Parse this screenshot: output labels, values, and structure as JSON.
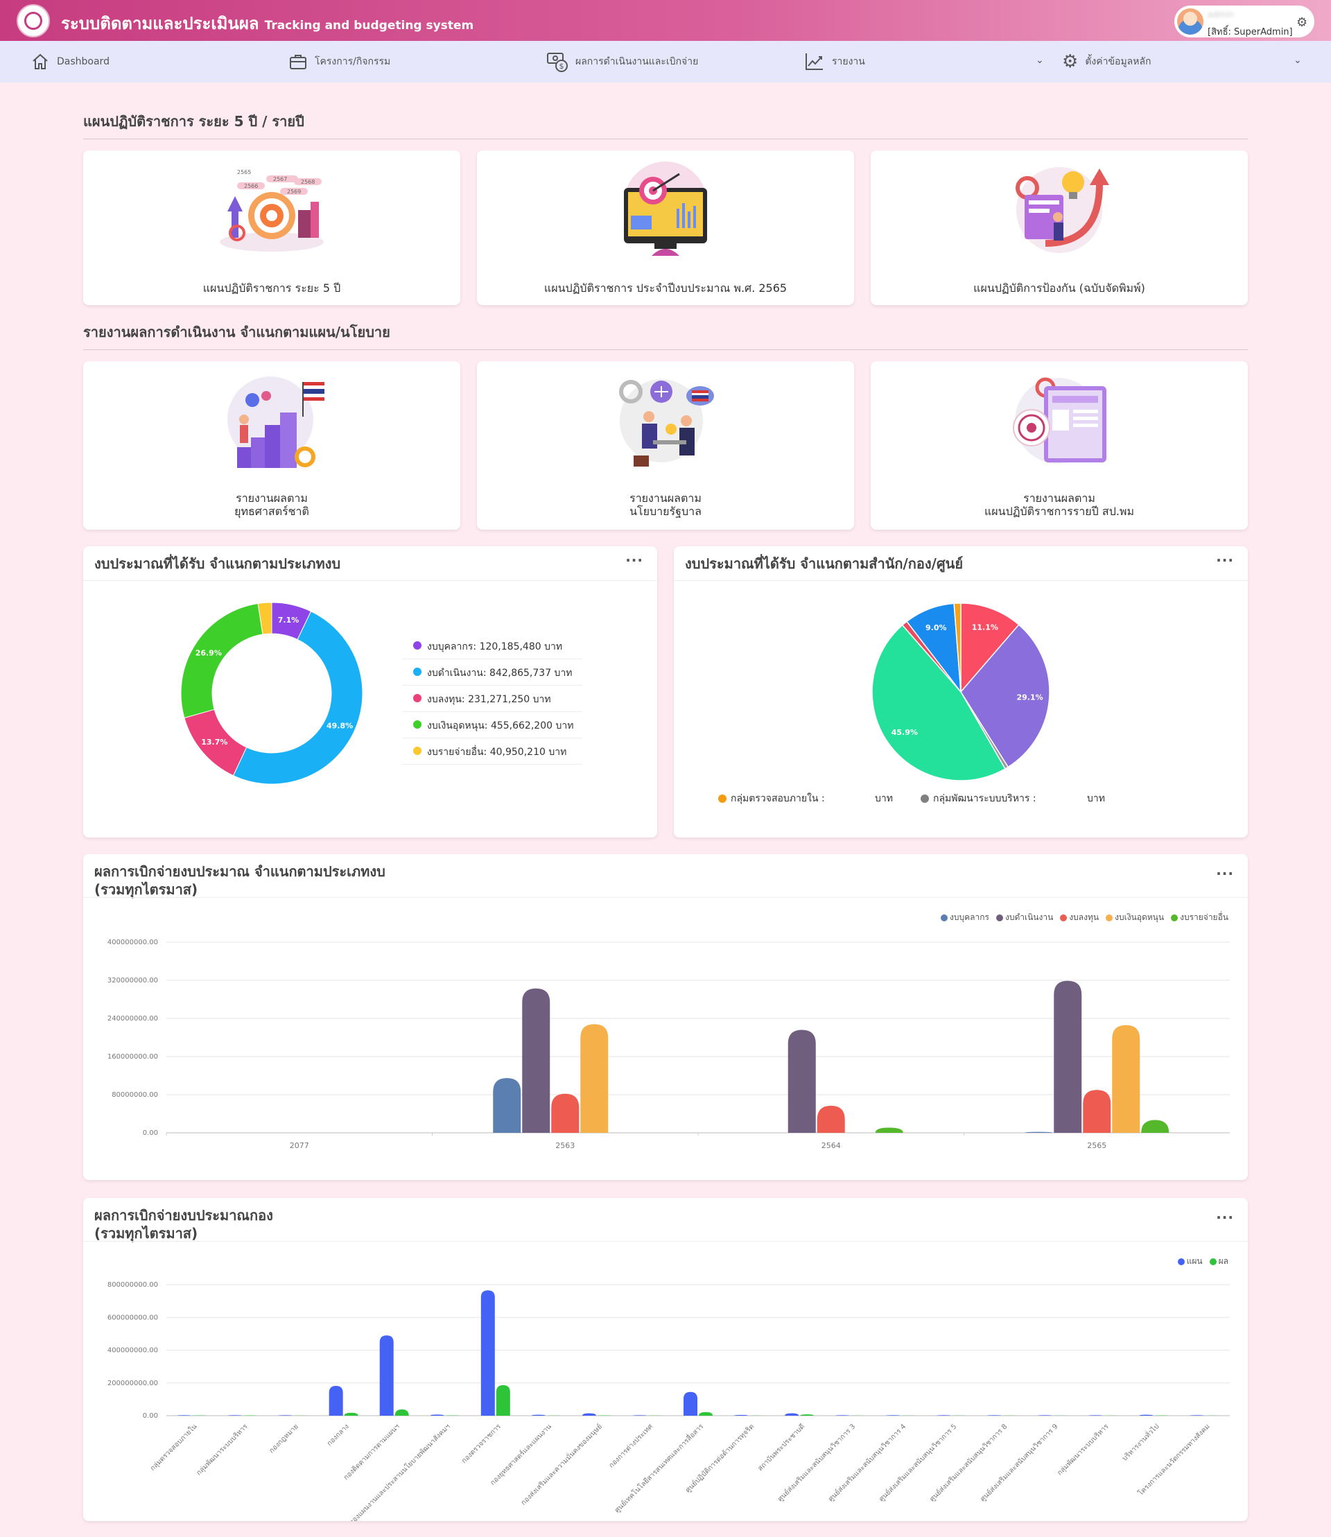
{
  "header": {
    "title_th": "ระบบติดตามและประเมินผล",
    "title_en": "Tracking and budgeting system",
    "user": {
      "name": "admin",
      "role": "[สิทธิ์: SuperAdmin]"
    }
  },
  "nav": {
    "items": [
      {
        "label": "Dashboard",
        "icon": "home-icon"
      },
      {
        "label": "โครงการ/กิจกรรม",
        "icon": "briefcase-icon"
      },
      {
        "label": "ผลการดำเนินงานและเบิกจ่าย",
        "icon": "money-icon"
      },
      {
        "label": "รายงาน",
        "icon": "chart-line-icon"
      },
      {
        "label": "ตั้งค่าข้อมูลหลัก",
        "icon": "gear-icon"
      }
    ]
  },
  "sections": {
    "plans_title": "แผนปฏิบัติราชการ ระยะ 5 ปี / รายปี",
    "reports_title": "รายงานผลการดำเนินงาน จำแนกตามแผน/นโยบาย"
  },
  "plan_tiles": [
    {
      "label": "แผนปฏิบัติราชการ ระยะ 5 ปี",
      "years": [
        "2565",
        "2566",
        "2567",
        "2568",
        "2569"
      ]
    },
    {
      "label": "แผนปฏิบัติราชการ ประจำปีงบประมาณ พ.ศ. 2565"
    },
    {
      "label": "แผนปฏิบัติการป้องกัน (ฉบับจัดพิมพ์)"
    }
  ],
  "report_tiles": [
    {
      "line1": "รายงานผลตาม",
      "line2": "ยุทธศาสตร์ชาติ"
    },
    {
      "line1": "รายงานผลตาม",
      "line2": "นโยบายรัฐบาล"
    },
    {
      "line1": "รายงานผลตาม",
      "line2": "แผนปฏิบัติราชการรายปี สป.พม"
    }
  ],
  "panels": {
    "donut_title": "งบประมาณที่ได้รับ จำแนกตามประเภทงบ",
    "pie_title": "งบประมาณที่ได้รับ จำแนกตามสำนัก/กอง/ศูนย์",
    "bar1_title_1": "ผลการเบิกจ่ายงบประมาณ จำแนกตามประเภทงบ",
    "bar1_title_2": "(รวมทุกไตรมาส)",
    "bar2_title_1": "ผลการเบิกจ่ายงบประมาณกอง",
    "bar2_title_2": "(รวมทุกไตรมาส)",
    "menu_dots": "···"
  },
  "chart_data": [
    {
      "type": "pie",
      "title": "งบประมาณที่ได้รับ จำแนกตามประเภทงบ",
      "donut": true,
      "slices": [
        {
          "label": "งบบุคลากร: 120,185,480 บาท",
          "value": 120185480,
          "pct_label": "7.1%",
          "color": "#8e44e6"
        },
        {
          "label": "งบดำเนินงาน: 842,865,737 บาท",
          "value": 842865737,
          "pct_label": "49.8%",
          "color": "#1ab0f5"
        },
        {
          "label": "งบลงทุน: 231,271,250 บาท",
          "value": 231271250,
          "pct_label": "13.7%",
          "color": "#ec407a"
        },
        {
          "label": "งบเงินอุดหนุน: 455,662,200 บาท",
          "value": 455662200,
          "pct_label": "26.9%",
          "color": "#3fcf2a"
        },
        {
          "label": "งบรายจ่ายอื่น: 40,950,210 บาท",
          "value": 40950210,
          "pct_label": "",
          "color": "#fdc72f"
        }
      ],
      "legend_position": "right"
    },
    {
      "type": "pie",
      "title": "งบประมาณที่ได้รับ จำแนกตามสำนัก/กอง/ศูนย์",
      "slices": [
        {
          "value": 11.1,
          "pct_label": "11.1%",
          "color": "#fa4d64"
        },
        {
          "value": 29.1,
          "pct_label": "29.1%",
          "color": "#8a6fdc"
        },
        {
          "value": 0.6,
          "pct_label": "",
          "color": "#9a9a9a"
        },
        {
          "value": 45.9,
          "pct_label": "45.9%",
          "color": "#23e09a"
        },
        {
          "value": 1.0,
          "pct_label": "",
          "color": "#e84a5f"
        },
        {
          "value": 9.0,
          "pct_label": "9.0%",
          "color": "#1a8cf0"
        },
        {
          "value": 1.2,
          "pct_label": "",
          "color": "#f7a21b"
        }
      ],
      "legend": [
        {
          "label": "กลุ่มตรวจสอบภายใน :",
          "unit": "บาท",
          "color": "#f39c12"
        },
        {
          "label": "กลุ่มพัฒนาระบบบริหาร :",
          "unit": "บาท",
          "color": "#808080"
        }
      ],
      "legend_position": "bottom"
    },
    {
      "type": "bar",
      "title": "ผลการเบิกจ่ายงบประมาณ จำแนกตามประเภทงบ (รวมทุกไตรมาส)",
      "categories": [
        "2077",
        "2563",
        "2564",
        "2565"
      ],
      "ylim": [
        0,
        400000000
      ],
      "yticks": [
        "0.00",
        "80000000.00",
        "160000000.00",
        "240000000.00",
        "320000000.00",
        "400000000.00"
      ],
      "legend_position": "top-right",
      "series": [
        {
          "name": "งบบุคลากร",
          "color": "#5a7fb0",
          "values": [
            0,
            115000000,
            0,
            2000000
          ]
        },
        {
          "name": "งบดำเนินงาน",
          "color": "#705e7e",
          "values": [
            0,
            303000000,
            216000000,
            319000000
          ]
        },
        {
          "name": "งบลงทุน",
          "color": "#ee5b50",
          "values": [
            0,
            82000000,
            57000000,
            90000000
          ]
        },
        {
          "name": "งบเงินอุดหนุน",
          "color": "#f5b04a",
          "values": [
            0,
            228000000,
            0,
            226000000
          ]
        },
        {
          "name": "งบรายจ่ายอื่น",
          "color": "#54b82a",
          "values": [
            0,
            0,
            11000000,
            27000000
          ]
        }
      ]
    },
    {
      "type": "bar",
      "title": "ผลการเบิกจ่ายงบประมาณกอง (รวมทุกไตรมาส)",
      "categories": [
        "กลุ่มตรวจสอบภายใน",
        "กลุ่มพัฒนาระบบบริหาร",
        "กองกฎหมาย",
        "กองกลาง",
        "กองติดตามการตามแผนฯ",
        "กองแผนงานและประสานนโยบายพัฒนาสังคมฯ",
        "กองตรวจราชการ",
        "กองยุทธศาสตร์และแผนงาน",
        "กองส่งเสริมและความมั่นคงของมนุษย์",
        "กองการต่างประเทศ",
        "ศูนย์เทคโนโลยีสารสนเทศและการสื่อสาร",
        "ศูนย์ปฏิบัติการต่อต้านการทุจริต",
        "สถาบันพระประชาบดี",
        "ศูนย์ส่งเสริมและสนับสนุนวิชาการ 3",
        "ศูนย์ส่งเสริมและสนับสนุนวิชาการ 4",
        "ศูนย์ส่งเสริมและสนับสนุนวิชาการ 5",
        "ศูนย์ส่งเสริมและสนับสนุนวิชาการ 8",
        "ศูนย์ส่งเสริมและสนับสนุนวิชาการ 9",
        "กลุ่มพัฒนาระบบบริหาร",
        "บริหารงานทั่วไป",
        "โครงการและนวัตกรรมทางสังคม"
      ],
      "ylim": [
        0,
        800000000
      ],
      "yticks": [
        "0.00",
        "200000000.00",
        "400000000.00",
        "600000000.00",
        "800000000.00"
      ],
      "legend_position": "top-right",
      "series": [
        {
          "name": "แผน",
          "color": "#4463f5",
          "values": [
            3000000,
            3000000,
            3000000,
            182000000,
            490000000,
            7000000,
            765000000,
            6000000,
            15000000,
            3000000,
            145000000,
            5000000,
            15000000,
            3000000,
            3000000,
            3000000,
            3000000,
            3000000,
            3000000,
            6000000,
            3000000
          ]
        },
        {
          "name": "ผล",
          "color": "#2dc43a",
          "values": [
            2000000,
            2000000,
            1000000,
            18000000,
            38000000,
            2000000,
            186000000,
            1000000,
            2000000,
            1000000,
            22000000,
            1000000,
            8000000,
            1000000,
            1000000,
            1000000,
            1000000,
            1000000,
            1000000,
            2000000,
            1000000
          ]
        }
      ]
    }
  ]
}
